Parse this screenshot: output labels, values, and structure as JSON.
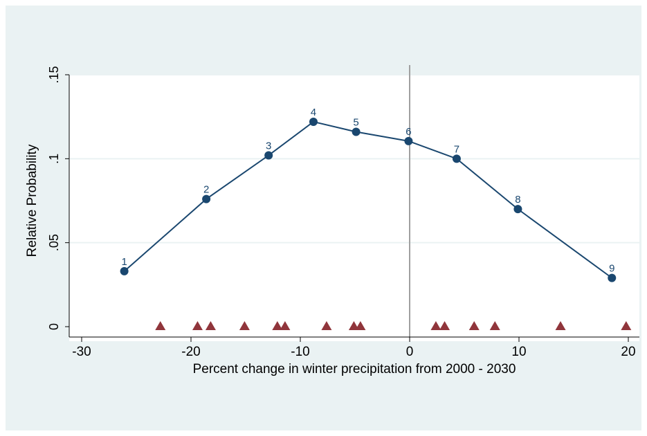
{
  "chart_data": {
    "type": "scatter",
    "xlabel": "Percent change in winter precipitation from 2000 - 2030",
    "ylabel": "Relative Probability",
    "xlim": [
      -31.5,
      21.5
    ],
    "ylim": [
      0,
      0.15
    ],
    "x_ticks": [
      -30,
      -20,
      -10,
      0,
      10,
      20
    ],
    "x_tick_labels": [
      "-30",
      "-20",
      "-10",
      "0",
      "10",
      "20"
    ],
    "y_ticks": [
      0,
      0.05,
      0.1,
      0.15
    ],
    "y_tick_labels": [
      "0",
      ".05",
      ".1",
      ".15"
    ],
    "grid": true,
    "reference_line_x": 0,
    "series": [
      {
        "marker": "circle",
        "connected": true,
        "color": "#1a476f",
        "points": [
          {
            "x": -26.1,
            "y": 0.033,
            "label": "1"
          },
          {
            "x": -18.6,
            "y": 0.076,
            "label": "2"
          },
          {
            "x": -12.9,
            "y": 0.102,
            "label": "3"
          },
          {
            "x": -8.8,
            "y": 0.122,
            "label": "4"
          },
          {
            "x": -4.9,
            "y": 0.116,
            "label": "5"
          },
          {
            "x": -0.1,
            "y": 0.1105,
            "label": "6"
          },
          {
            "x": 4.3,
            "y": 0.1,
            "label": "7"
          },
          {
            "x": 9.9,
            "y": 0.07,
            "label": "8"
          },
          {
            "x": 18.5,
            "y": 0.029,
            "label": "9"
          }
        ]
      },
      {
        "marker": "triangle",
        "connected": false,
        "color": "#90353b",
        "points": [
          {
            "x": -22.8,
            "y": 0
          },
          {
            "x": -19.4,
            "y": 0
          },
          {
            "x": -18.2,
            "y": 0
          },
          {
            "x": -15.1,
            "y": 0
          },
          {
            "x": -12.1,
            "y": 0
          },
          {
            "x": -11.4,
            "y": 0
          },
          {
            "x": -7.6,
            "y": 0
          },
          {
            "x": -5.1,
            "y": 0
          },
          {
            "x": -4.5,
            "y": 0
          },
          {
            "x": 2.4,
            "y": 0
          },
          {
            "x": 3.2,
            "y": 0
          },
          {
            "x": 5.9,
            "y": 0
          },
          {
            "x": 7.8,
            "y": 0
          },
          {
            "x": 13.8,
            "y": 0
          },
          {
            "x": 19.8,
            "y": 0
          }
        ]
      }
    ]
  }
}
